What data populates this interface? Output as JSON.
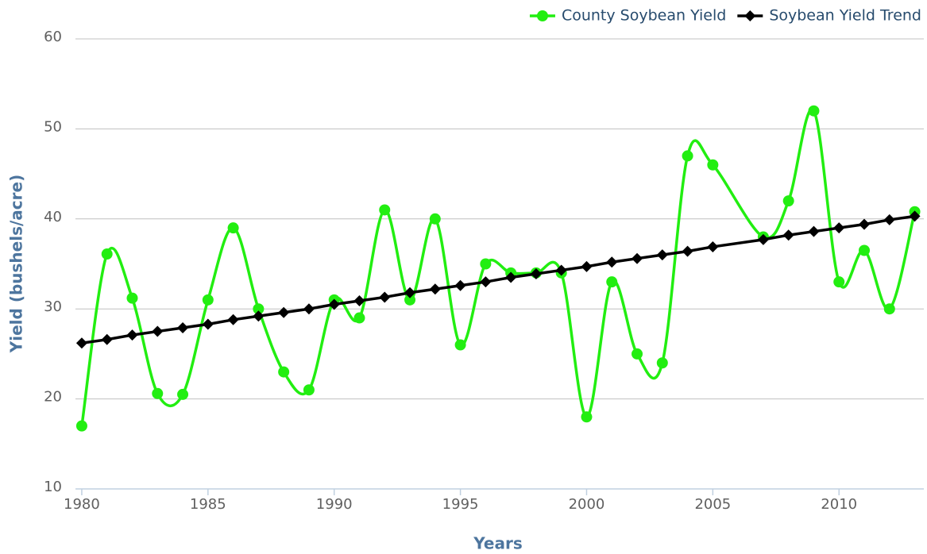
{
  "chart_data": {
    "type": "line",
    "x_label": "Years",
    "y_label": "Yield (bushels/acre)",
    "x": [
      1980,
      1981,
      1982,
      1983,
      1984,
      1985,
      1986,
      1987,
      1988,
      1989,
      1990,
      1991,
      1992,
      1993,
      1994,
      1995,
      1996,
      1997,
      1998,
      1999,
      2000,
      2001,
      2002,
      2003,
      2004,
      2005,
      2007,
      2008,
      2009,
      2010,
      2011,
      2012,
      2013
    ],
    "series": [
      {
        "name": "County Soybean Yield",
        "color": "#22ee11",
        "marker": "circle",
        "smooth": true,
        "values": [
          17,
          36.1,
          31.2,
          20.6,
          20.5,
          31,
          39,
          30,
          23,
          21,
          31,
          29,
          41,
          31,
          40,
          26,
          35,
          34,
          34,
          34,
          18,
          33,
          25,
          24,
          47,
          46,
          38,
          42,
          52,
          33,
          36.5,
          30,
          40.8
        ]
      },
      {
        "name": "Soybean Yield Trend",
        "color": "#000000",
        "marker": "diamond",
        "smooth": false,
        "values": [
          26.2,
          26.6,
          27.1,
          27.5,
          27.9,
          28.3,
          28.8,
          29.2,
          29.6,
          30.0,
          30.5,
          30.9,
          31.3,
          31.8,
          32.2,
          32.6,
          33.0,
          33.5,
          33.9,
          34.3,
          34.7,
          35.2,
          35.6,
          36.0,
          36.4,
          36.9,
          37.7,
          38.2,
          38.6,
          39.0,
          39.4,
          39.9,
          40.3
        ]
      }
    ],
    "xlim": [
      1979.75,
      2013.36
    ],
    "xticks": [
      1980,
      1985,
      1990,
      1995,
      2000,
      2005,
      2010
    ],
    "ylim": [
      10,
      60
    ],
    "yticks": [
      10,
      20,
      30,
      40,
      50,
      60
    ],
    "grid": true,
    "legend": "top-right"
  }
}
